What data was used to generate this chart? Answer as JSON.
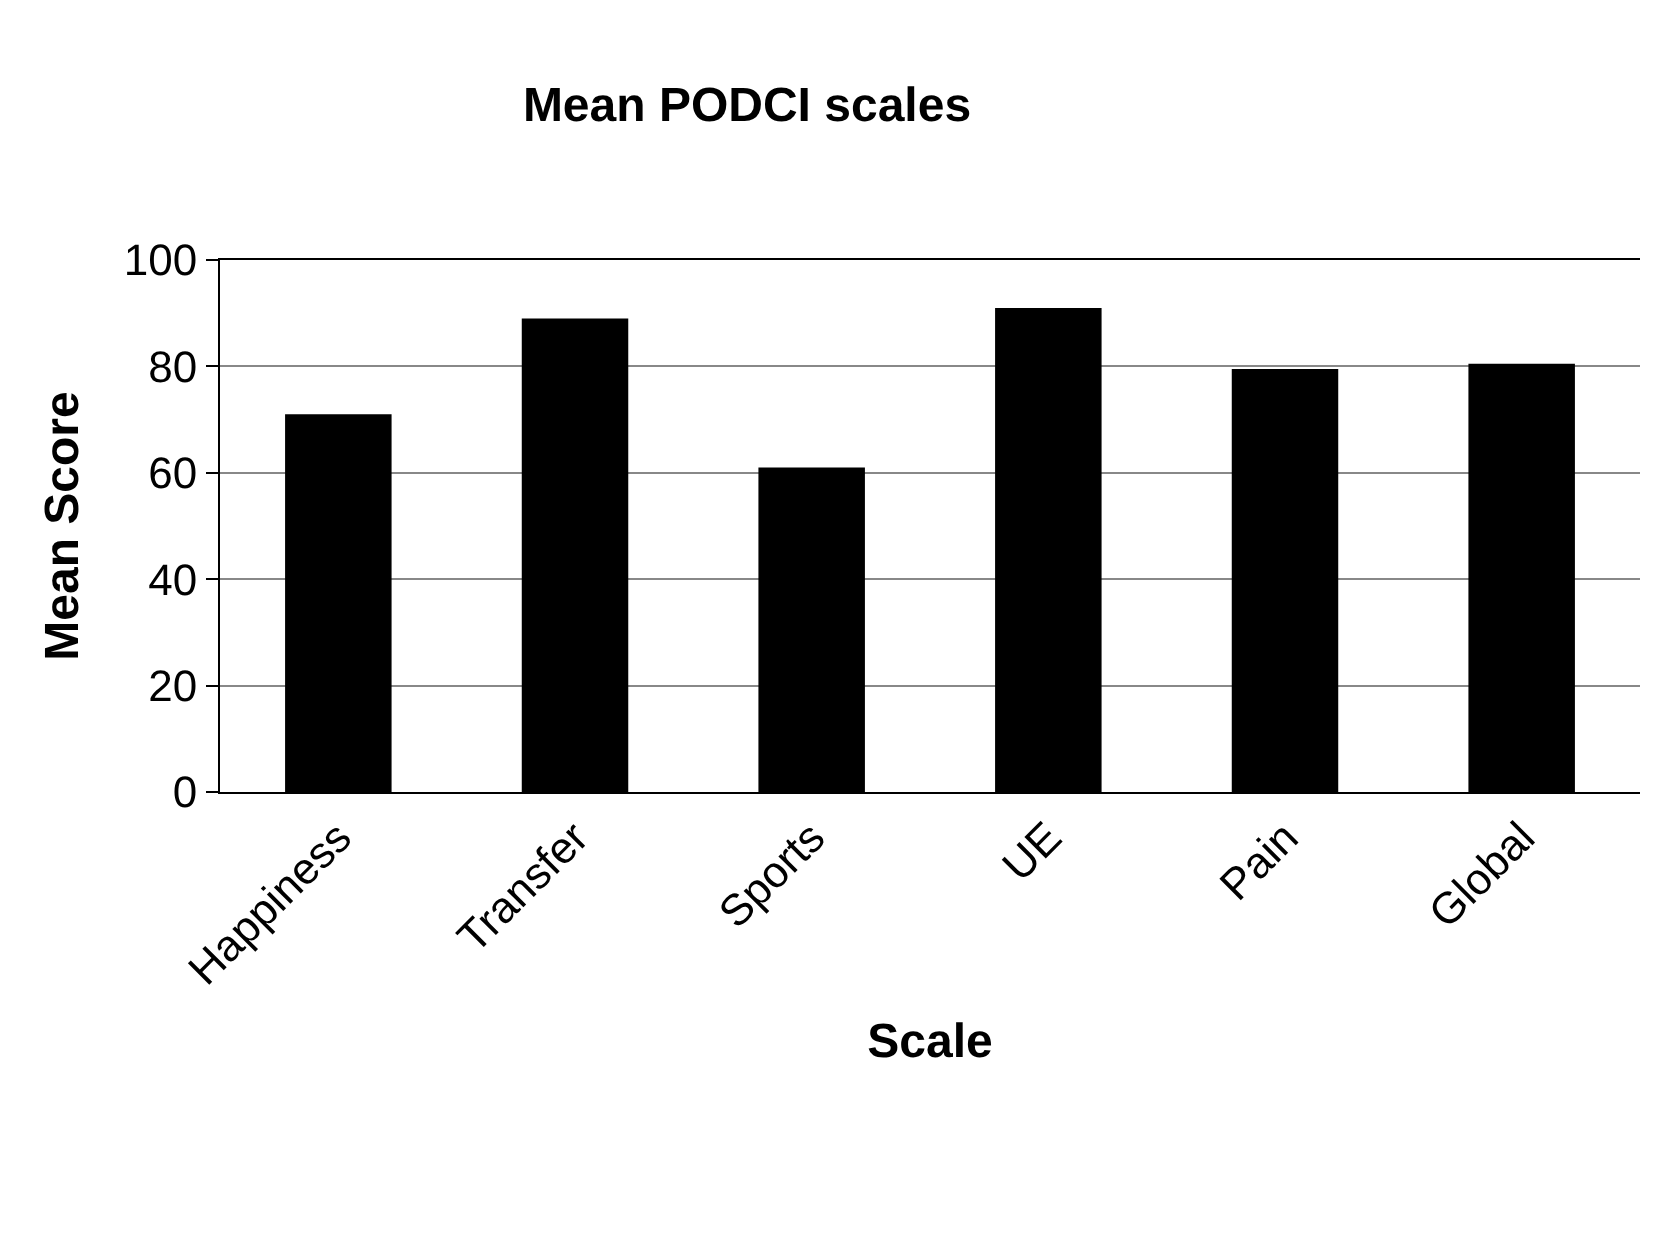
{
  "chart_data": {
    "type": "bar",
    "title": "Mean PODCI scales",
    "xlabel": "Scale",
    "ylabel": "Mean Score",
    "categories": [
      "Happiness",
      "Transfer",
      "Sports",
      "UE",
      "Pain",
      "Global"
    ],
    "values": [
      71,
      89,
      61,
      91,
      79.5,
      80.5
    ],
    "color": "#000000",
    "ylim": [
      0,
      100
    ],
    "yticks": [
      0,
      20,
      40,
      60,
      80,
      100
    ],
    "grid": "y"
  }
}
